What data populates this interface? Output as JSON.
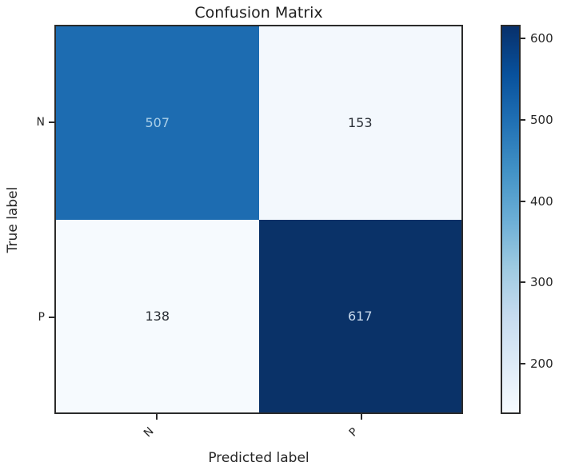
{
  "chart_data": {
    "type": "heatmap",
    "title": "Confusion Matrix",
    "xlabel": "Predicted label",
    "ylabel": "True label",
    "categories": [
      "N",
      "P"
    ],
    "matrix": [
      [
        507,
        153
      ],
      [
        138,
        617
      ]
    ],
    "vmin": 138,
    "vmax": 617,
    "colorbar_ticks": [
      600,
      500,
      400,
      300,
      200
    ],
    "colormap": "Blues",
    "legend_position": "right-colorbar",
    "grid": false,
    "cell_colors": [
      [
        "#1d6cb1",
        "#f3f8fd"
      ],
      [
        "#f6fafe",
        "#0a3268"
      ]
    ],
    "cell_text_colors": [
      [
        "#aacfe8",
        "#2a2f36"
      ],
      [
        "#2a2f36",
        "#c8d9ec"
      ]
    ],
    "colorbar_gradient": [
      "#08306b",
      "#08519c",
      "#2171b5",
      "#4292c6",
      "#6baed6",
      "#9ecae1",
      "#c6dbef",
      "#deebf7",
      "#f7fbff"
    ],
    "axis_color": "#2b2b2b"
  }
}
